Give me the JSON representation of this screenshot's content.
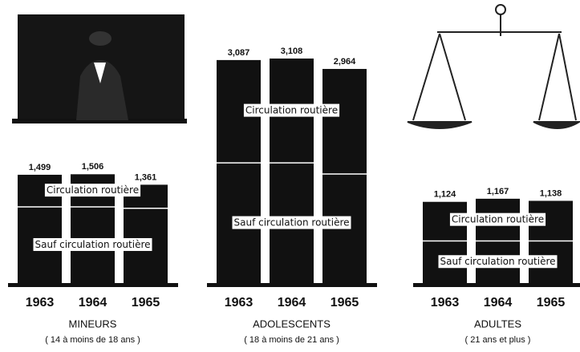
{
  "chart_data": [
    {
      "type": "stacked_bar",
      "title": "MINEURS",
      "subtitle": "( 14 à moins de 18 ans )",
      "categories": [
        "1963",
        "1964",
        "1965"
      ],
      "series": [
        {
          "name": "Sauf circulation routière",
          "color": "#111111",
          "values": [
            1055,
            1055,
            1035
          ]
        },
        {
          "name": "Circulation routière",
          "color": "#111111",
          "values": [
            444,
            451,
            326
          ]
        }
      ],
      "totals": [
        1499,
        1506,
        1361
      ],
      "total_labels": [
        "1,499",
        "1,506",
        "1,361"
      ]
    },
    {
      "type": "stacked_bar",
      "title": "ADOLESCENTS",
      "subtitle": "( 18 à moins de 21 ans )",
      "categories": [
        "1963",
        "1964",
        "1965"
      ],
      "series": [
        {
          "name": "Sauf circulation routière",
          "color": "#111111",
          "values": [
            1663,
            1663,
            1510
          ]
        },
        {
          "name": "Circulation routière",
          "color": "#111111",
          "values": [
            1424,
            1445,
            1454
          ]
        }
      ],
      "totals": [
        3087,
        3108,
        2964
      ],
      "total_labels": [
        "3,087",
        "3,108",
        "2,964"
      ]
    },
    {
      "type": "stacked_bar",
      "title": "ADULTES",
      "subtitle": "( 21 ans et plus )",
      "categories": [
        "1963",
        "1964",
        "1965"
      ],
      "series": [
        {
          "name": "Sauf circulation routière",
          "color": "#111111",
          "values": [
            583,
            583,
            583
          ]
        },
        {
          "name": "Circulation routière",
          "color": "#111111",
          "values": [
            541,
            584,
            555
          ]
        }
      ],
      "totals": [
        1124,
        1167,
        1138
      ],
      "total_labels": [
        "1,124",
        "1,167",
        "1,138"
      ]
    }
  ]
}
